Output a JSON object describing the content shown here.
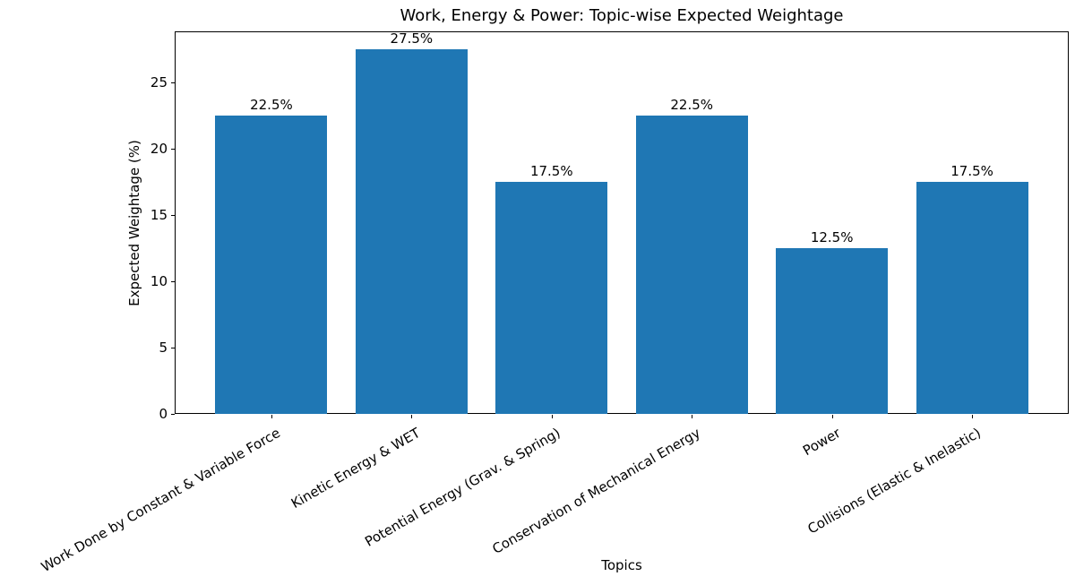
{
  "chart_data": {
    "type": "bar",
    "title": "Work, Energy & Power: Topic-wise Expected Weightage",
    "xlabel": "Topics",
    "ylabel": "Expected Weightage (%)",
    "categories": [
      "Work Done by Constant & Variable Force",
      "Kinetic Energy & WET",
      "Potential Energy (Grav. & Spring)",
      "Conservation of Mechanical Energy",
      "Power",
      "Collisions (Elastic & Inelastic)"
    ],
    "values": [
      22.5,
      27.5,
      17.5,
      22.5,
      12.5,
      17.5
    ],
    "bar_labels": [
      "22.5%",
      "27.5%",
      "17.5%",
      "22.5%",
      "12.5%",
      "17.5%"
    ],
    "yticks": [
      0,
      5,
      10,
      15,
      20,
      25
    ],
    "ylim": [
      0,
      28.875
    ],
    "x_tick_rotation_deg": 30,
    "grid": false,
    "legend": "none",
    "bar_color": "#1f77b4",
    "text_color": "#000000",
    "spine_color": "#000000",
    "background_color": "#ffffff"
  }
}
